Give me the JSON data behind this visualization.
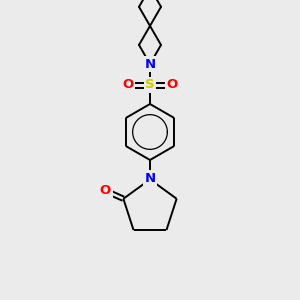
{
  "background_color": "#ebebeb",
  "atom_colors": {
    "C": "#000000",
    "N": "#0000ff",
    "O": "#ff0000",
    "S": "#cccc00"
  },
  "bond_color": "#000000",
  "bond_width": 1.4,
  "fig_width": 3.0,
  "fig_height": 3.0,
  "dpi": 100,
  "xlim": [
    0,
    300
  ],
  "ylim": [
    0,
    300
  ]
}
